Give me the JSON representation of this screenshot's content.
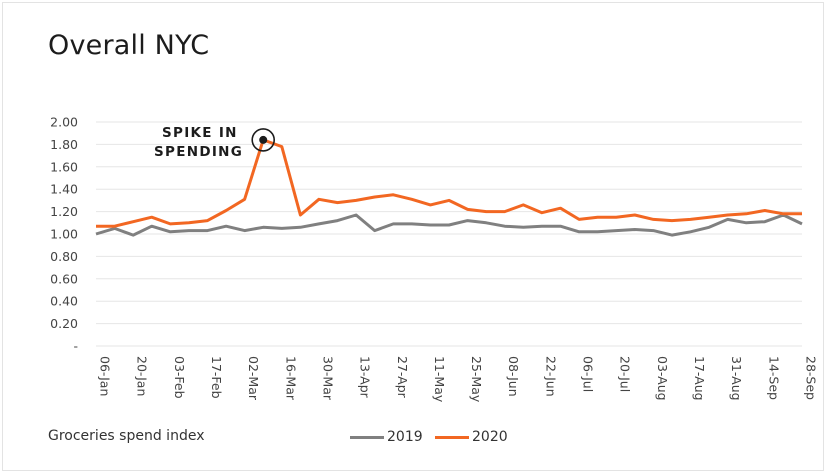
{
  "chart_data": {
    "type": "line",
    "title": "Overall NYC",
    "ylabel": "Groceries spend index",
    "ylim": [
      0,
      2.0
    ],
    "yticks": [
      "-",
      "0.20",
      "0.40",
      "0.60",
      "0.80",
      "1.00",
      "1.20",
      "1.40",
      "1.60",
      "1.80",
      "2.00"
    ],
    "x_tick_labels": [
      "06-Jan",
      "20-Jan",
      "03-Feb",
      "17-Feb",
      "02-Mar",
      "16-Mar",
      "30-Mar",
      "13-Apr",
      "27-Apr",
      "11-May",
      "25-May",
      "08-Jun",
      "22-Jun",
      "06-Jul",
      "20-Jul",
      "03-Aug",
      "17-Aug",
      "31-Aug",
      "14-Sep",
      "28-Sep"
    ],
    "grid": "horizontal",
    "legend_position": "bottom",
    "annotation": {
      "text_line1": "SPIKE IN",
      "text_line2": "SPENDING",
      "week_index": 9
    },
    "series": [
      {
        "name": "2019",
        "color": "#808080",
        "values": [
          1.0,
          1.05,
          0.99,
          1.07,
          1.02,
          1.03,
          1.03,
          1.07,
          1.03,
          1.06,
          1.05,
          1.06,
          1.09,
          1.12,
          1.17,
          1.03,
          1.09,
          1.09,
          1.08,
          1.08,
          1.12,
          1.1,
          1.07,
          1.06,
          1.07,
          1.07,
          1.02,
          1.02,
          1.03,
          1.04,
          1.03,
          0.99,
          1.02,
          1.06,
          1.13,
          1.1,
          1.11,
          1.17,
          1.09
        ]
      },
      {
        "name": "2020",
        "color": "#f26722",
        "values": [
          1.07,
          1.07,
          1.11,
          1.15,
          1.09,
          1.1,
          1.12,
          1.21,
          1.31,
          1.84,
          1.78,
          1.17,
          1.31,
          1.28,
          1.3,
          1.33,
          1.35,
          1.31,
          1.26,
          1.3,
          1.22,
          1.2,
          1.2,
          1.26,
          1.19,
          1.23,
          1.13,
          1.15,
          1.15,
          1.17,
          1.13,
          1.12,
          1.13,
          1.15,
          1.17,
          1.18,
          1.21,
          1.18,
          1.18
        ]
      }
    ]
  }
}
